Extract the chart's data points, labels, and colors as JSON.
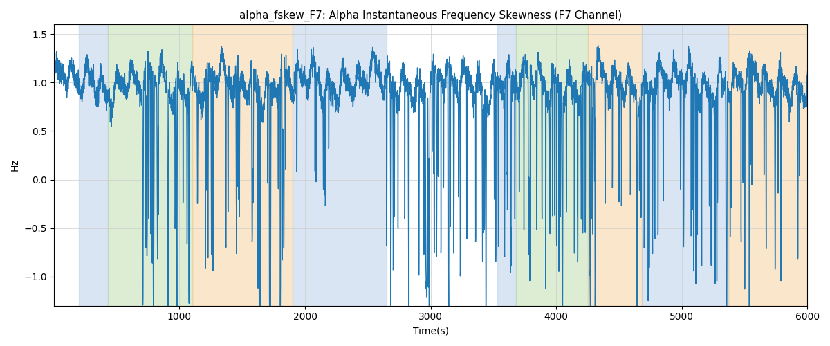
{
  "title": "alpha_fskew_F7: Alpha Instantaneous Frequency Skewness (F7 Channel)",
  "xlabel": "Time(s)",
  "ylabel": "Hz",
  "xlim": [
    0,
    6000
  ],
  "ylim": [
    -1.3,
    1.6
  ],
  "yticks": [
    -1.0,
    -0.5,
    0.0,
    0.5,
    1.0,
    1.5
  ],
  "xticks": [
    1000,
    2000,
    3000,
    4000,
    5000,
    6000
  ],
  "line_color": "#1f77b4",
  "line_width": 1.0,
  "background_color": "#ffffff",
  "bands": [
    {
      "xmin": 200,
      "xmax": 430,
      "color": "#aec6e8",
      "alpha": 0.45
    },
    {
      "xmin": 430,
      "xmax": 1100,
      "color": "#b5d9a0",
      "alpha": 0.45
    },
    {
      "xmin": 1100,
      "xmax": 1900,
      "color": "#f5c98a",
      "alpha": 0.45
    },
    {
      "xmin": 1900,
      "xmax": 2650,
      "color": "#aec6e8",
      "alpha": 0.45
    },
    {
      "xmin": 3530,
      "xmax": 3680,
      "color": "#aec6e8",
      "alpha": 0.45
    },
    {
      "xmin": 3680,
      "xmax": 4250,
      "color": "#b5d9a0",
      "alpha": 0.45
    },
    {
      "xmin": 4250,
      "xmax": 4680,
      "color": "#f5c98a",
      "alpha": 0.45
    },
    {
      "xmin": 4680,
      "xmax": 5370,
      "color": "#aec6e8",
      "alpha": 0.45
    },
    {
      "xmin": 5370,
      "xmax": 6000,
      "color": "#f5c98a",
      "alpha": 0.45
    }
  ],
  "figsize": [
    12.0,
    5.0
  ],
  "dpi": 100
}
